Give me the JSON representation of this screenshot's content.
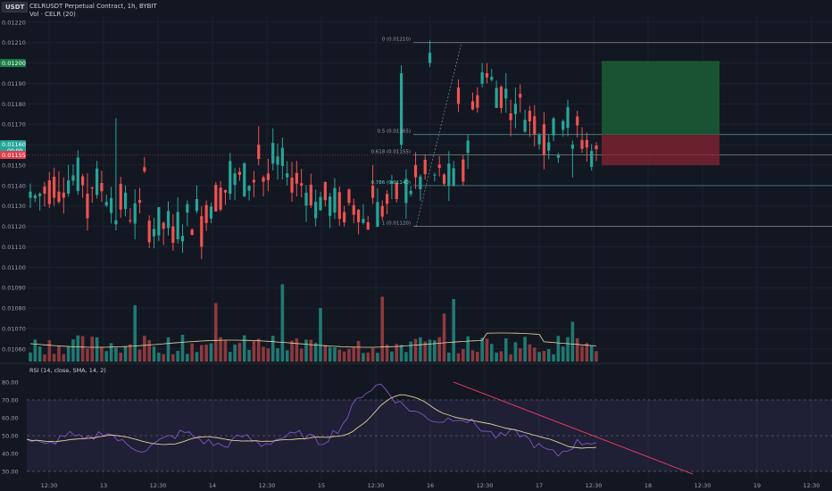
{
  "header": {
    "badge": "USDT",
    "symbol_line": "CELRUSDT Perpetual Contract, 1h, BYBIT",
    "volume_line": "Vol · CELR (20)"
  },
  "colors": {
    "background": "#131722",
    "up": "#26a69a",
    "down": "#ef5350",
    "grid": "#1e2230",
    "axis_text": "#9aa0ab",
    "fib_line": "#4a8a8a",
    "rsi_line": "#7e57c2",
    "rsi_ma": "#e0d09a",
    "trendline": "#e03d5e",
    "tp_zone": "#1b5e36",
    "sl_zone": "#7a2230"
  },
  "price_axis": {
    "ticks": [
      "0.01220",
      "0.01210",
      "0.01200",
      "0.01190",
      "0.01180",
      "0.01170",
      "0.01160",
      "0.01150",
      "0.01140",
      "0.01130",
      "0.01120",
      "0.01110",
      "0.01100",
      "0.01090",
      "0.01080",
      "0.01070",
      "0.01060"
    ],
    "badges": [
      {
        "text": "0.01200",
        "color": "#1b7f4a"
      },
      {
        "text": "0.01160",
        "subtext": "00:09",
        "color": "#26a69a"
      },
      {
        "text": "0.01155",
        "color": "#e03d4e"
      }
    ]
  },
  "rsi_axis": {
    "ticks": [
      "80.00",
      "70.00",
      "60.00",
      "50.00",
      "40.00",
      "30.00"
    ]
  },
  "time_axis": {
    "labels": [
      "12:30",
      "13",
      "12:30",
      "14",
      "12:30",
      "15",
      "12:30",
      "16",
      "12:30",
      "17",
      "12:30",
      "18",
      "12:30",
      "19",
      "12:30"
    ]
  },
  "rsi": {
    "title": "RSI (14, close, SMA, 14, 2)"
  },
  "fibonacci": [
    {
      "label": "0 (0.01210)",
      "price": 0.0121
    },
    {
      "label": "0.5 (0.01165)",
      "price": 0.01165
    },
    {
      "label": "0.618 (0.01155)",
      "price": 0.01155
    },
    {
      "label": "0.786 (0.01140)",
      "price": 0.0114
    },
    {
      "label": "1 (0.01120)",
      "price": 0.0112
    }
  ],
  "chart_data": {
    "type": "candlestick",
    "price_range": [
      0.01056,
      0.01223
    ],
    "candle_count": 120,
    "candles_sample": [
      {
        "open": 0.01134,
        "high": 0.01141,
        "low": 0.01129,
        "close": 0.01137
      },
      {
        "open": 0.01137,
        "high": 0.01147,
        "low": 0.01131,
        "close": 0.01132
      },
      {
        "open": 0.01136,
        "high": 0.01146,
        "low": 0.01118,
        "close": 0.01124
      },
      {
        "open": 0.01121,
        "high": 0.01173,
        "low": 0.01118,
        "close": 0.01123
      },
      {
        "open": 0.01149,
        "high": 0.01154,
        "low": 0.01146,
        "close": 0.01147
      },
      {
        "open": 0.0112,
        "high": 0.01126,
        "low": 0.01108,
        "close": 0.01112
      },
      {
        "open": 0.01125,
        "high": 0.0113,
        "low": 0.01104,
        "close": 0.0111
      },
      {
        "open": 0.01136,
        "high": 0.01156,
        "low": 0.01133,
        "close": 0.01152
      },
      {
        "open": 0.0116,
        "high": 0.01169,
        "low": 0.0115,
        "close": 0.01153
      },
      {
        "open": 0.01144,
        "high": 0.01152,
        "low": 0.0114,
        "close": 0.01146
      },
      {
        "open": 0.01124,
        "high": 0.01138,
        "low": 0.0112,
        "close": 0.01132
      },
      {
        "open": 0.01127,
        "high": 0.0113,
        "low": 0.0112,
        "close": 0.01122
      },
      {
        "open": 0.0114,
        "high": 0.0115,
        "low": 0.01131,
        "close": 0.01134
      },
      {
        "open": 0.0116,
        "high": 0.01199,
        "low": 0.01158,
        "close": 0.01195
      },
      {
        "open": 0.012,
        "high": 0.01211,
        "low": 0.01198,
        "close": 0.01205
      },
      {
        "open": 0.01188,
        "high": 0.01192,
        "low": 0.01176,
        "close": 0.0118
      },
      {
        "open": 0.01195,
        "high": 0.012,
        "low": 0.0119,
        "close": 0.01193
      },
      {
        "open": 0.01175,
        "high": 0.01188,
        "low": 0.01168,
        "close": 0.0118
      },
      {
        "open": 0.0117,
        "high": 0.01176,
        "low": 0.01148,
        "close": 0.01155
      },
      {
        "open": 0.01158,
        "high": 0.01162,
        "low": 0.01144,
        "close": 0.0116
      }
    ],
    "rsi_range": [
      28,
      84
    ],
    "rsi_levels": {
      "upper": 70,
      "middle": 50,
      "lower": 30
    },
    "rsi_sample": [
      48,
      44,
      51,
      47,
      53,
      45,
      42,
      48,
      52,
      47,
      44,
      50,
      45,
      49,
      51,
      46,
      55,
      73,
      79,
      68,
      62,
      58,
      61,
      55,
      49,
      52,
      44,
      39,
      46,
      47
    ]
  }
}
